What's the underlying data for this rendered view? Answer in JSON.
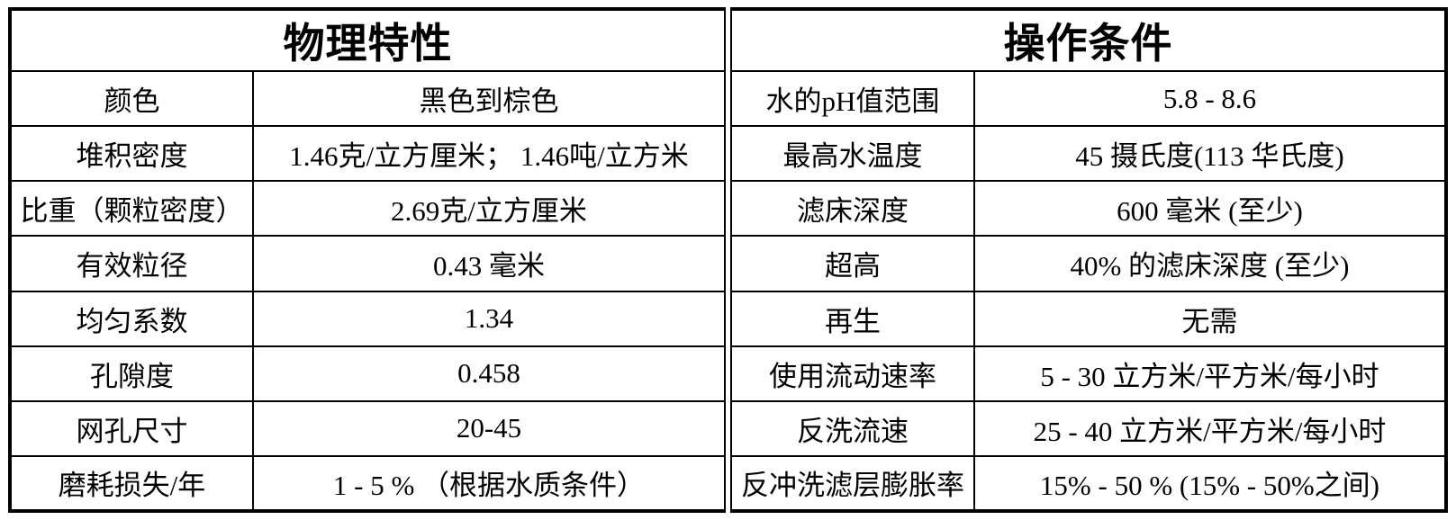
{
  "colors": {
    "border": "#000000",
    "background": "#ffffff",
    "text": "#000000"
  },
  "left_table": {
    "title": "物理特性",
    "rows": [
      {
        "label": "颜色",
        "value": "黑色到棕色"
      },
      {
        "label": "堆积密度",
        "value": "1.46克/立方厘米； 1.46吨/立方米"
      },
      {
        "label": "比重（颗粒密度）",
        "value": "2.69克/立方厘米"
      },
      {
        "label": "有效粒径",
        "value": "0.43 毫米"
      },
      {
        "label": "均匀系数",
        "value": "1.34"
      },
      {
        "label": "孔隙度",
        "value": "0.458"
      },
      {
        "label": "网孔尺寸",
        "value": "20-45"
      },
      {
        "label": "磨耗损失/年",
        "value": "1 - 5 % （根据水质条件）"
      }
    ]
  },
  "right_table": {
    "title": "操作条件",
    "rows": [
      {
        "label": "水的pH值范围",
        "value": "5.8 - 8.6"
      },
      {
        "label": "最高水温度",
        "value": "45 摄氏度(113 华氏度)"
      },
      {
        "label": "滤床深度",
        "value": "600 毫米 (至少)"
      },
      {
        "label": "超高",
        "value": "40% 的滤床深度 (至少)"
      },
      {
        "label": "再生",
        "value": "无需"
      },
      {
        "label": "使用流动速率",
        "value": "5 - 30 立方米/平方米/每小时"
      },
      {
        "label": "反洗流速",
        "value": "25 - 40 立方米/平方米/每小时"
      },
      {
        "label": "反冲洗滤层膨胀率",
        "value": "15% - 50 % (15% - 50%之间)"
      }
    ]
  }
}
